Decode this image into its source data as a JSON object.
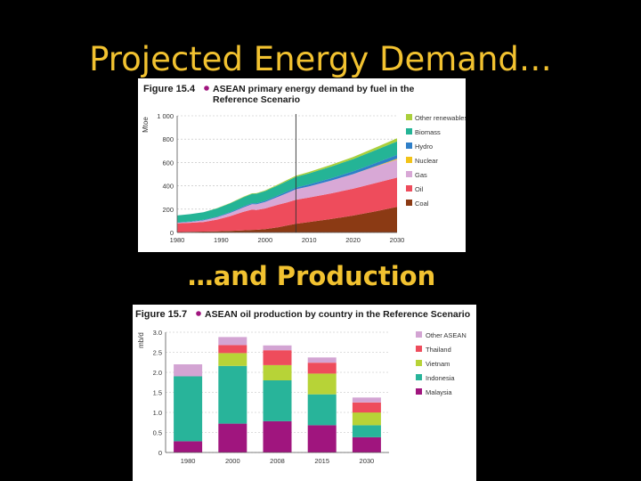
{
  "slide": {
    "title": "Projected Energy Demand…",
    "subtitle": "…and Production"
  },
  "chart_data": [
    {
      "type": "area",
      "figure_label": "Figure 15.4",
      "title": "ASEAN primary energy demand by fuel in the Reference Scenario",
      "ylabel": "Mtoe",
      "xlabel": "",
      "xlim": [
        1980,
        2030
      ],
      "ylim": [
        0,
        1000
      ],
      "xticks": [
        1980,
        1990,
        2000,
        2010,
        2020,
        2030
      ],
      "yticks": [
        0,
        200,
        400,
        600,
        800,
        1000
      ],
      "ytick_labels": [
        "0",
        "200",
        "400",
        "600",
        "800",
        "1 000"
      ],
      "stacked": true,
      "grid": true,
      "legend_position": "right",
      "annotations": [
        {
          "type": "vertical-line",
          "x": 2007
        }
      ],
      "x": [
        1980,
        1983,
        1986,
        1989,
        1992,
        1995,
        1997,
        1998,
        2000,
        2003,
        2005,
        2007,
        2010,
        2015,
        2020,
        2025,
        2030
      ],
      "series": [
        {
          "name": "Coal",
          "color": "#8b3a14",
          "values": [
            3,
            5,
            8,
            10,
            14,
            18,
            22,
            23,
            28,
            45,
            60,
            75,
            90,
            115,
            145,
            180,
            220
          ]
        },
        {
          "name": "Oil",
          "color": "#ee4c5c",
          "values": [
            75,
            78,
            82,
            100,
            125,
            158,
            175,
            170,
            178,
            193,
            198,
            205,
            210,
            220,
            230,
            243,
            250
          ]
        },
        {
          "name": "Gas",
          "color": "#d8a8d6",
          "values": [
            5,
            8,
            14,
            20,
            28,
            38,
            45,
            48,
            55,
            68,
            80,
            90,
            95,
            110,
            125,
            140,
            155
          ]
        },
        {
          "name": "Nuclear",
          "color": "#f2c318",
          "values": [
            0,
            0,
            0,
            0,
            0,
            0,
            0,
            0,
            0,
            0,
            0,
            0,
            0,
            0,
            0,
            3,
            8
          ]
        },
        {
          "name": "Hydro",
          "color": "#2f7fc8",
          "values": [
            3,
            4,
            5,
            6,
            7,
            8,
            9,
            9,
            10,
            12,
            13,
            15,
            17,
            20,
            24,
            28,
            32
          ]
        },
        {
          "name": "Biomass",
          "color": "#24b496",
          "values": [
            60,
            62,
            64,
            70,
            75,
            79,
            80,
            82,
            84,
            87,
            90,
            92,
            95,
            100,
            105,
            110,
            115
          ]
        },
        {
          "name": "Other renewables",
          "color": "#aacf3c",
          "values": [
            0,
            0,
            1,
            2,
            3,
            4,
            5,
            5,
            6,
            8,
            9,
            10,
            12,
            15,
            18,
            22,
            27
          ]
        }
      ]
    },
    {
      "type": "bar",
      "figure_label": "Figure 15.7",
      "title": "ASEAN oil production by country in the Reference Scenario",
      "ylabel": "mb/d",
      "xlabel": "",
      "ylim": [
        0,
        3
      ],
      "yticks": [
        0,
        0.5,
        1,
        1.5,
        2,
        2.5,
        3
      ],
      "ytick_labels": [
        "0",
        "0.5",
        "1.0",
        "1.5",
        "2.0",
        "2.5",
        "3.0"
      ],
      "stacked": true,
      "grid": true,
      "legend_position": "right",
      "categories": [
        "1980",
        "2000",
        "2008",
        "2015",
        "2030"
      ],
      "series": [
        {
          "name": "Malaysia",
          "color": "#a0157e",
          "values": [
            0.28,
            0.72,
            0.78,
            0.68,
            0.38
          ]
        },
        {
          "name": "Indonesia",
          "color": "#28b49a",
          "values": [
            1.62,
            1.44,
            1.02,
            0.77,
            0.3
          ]
        },
        {
          "name": "Vietnam",
          "color": "#b7d337",
          "values": [
            0,
            0.32,
            0.38,
            0.52,
            0.32
          ]
        },
        {
          "name": "Thailand",
          "color": "#ee4c5c",
          "values": [
            0,
            0.2,
            0.37,
            0.27,
            0.25
          ]
        },
        {
          "name": "Other ASEAN",
          "color": "#d3a4d3",
          "values": [
            0.3,
            0.2,
            0.12,
            0.13,
            0.12
          ]
        }
      ]
    }
  ]
}
